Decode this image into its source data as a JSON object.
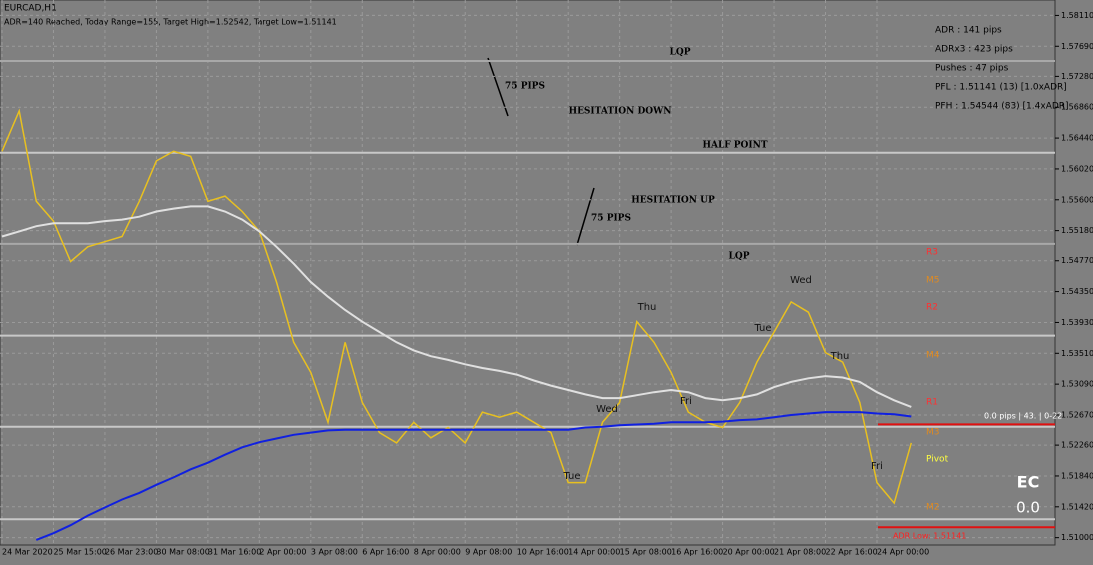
{
  "header": {
    "symbol": "EURCAD,H1",
    "status": "ADR=140 Reached, Today Range=155, Target High=1.52542, Target Low=1.51141"
  },
  "info_panel": [
    "ADR : 141 pips",
    "ADRx3 : 423 pips",
    "Pushes : 47 pips",
    "PFL : 1.51141 (13) [1.0xADR]",
    "PFH : 1.54544 (83) [1.4xADR]"
  ],
  "chart_data": {
    "type": "line",
    "categories": [
      "24 Mar 2020",
      null,
      null,
      "25 Mar 15:00",
      null,
      null,
      "26 Mar 23:00",
      null,
      null,
      "30 Mar 08:00",
      null,
      null,
      "31 Mar 16:00",
      null,
      null,
      "2 Apr 00:00",
      null,
      null,
      "3 Apr 08:00",
      null,
      null,
      "6 Apr 16:00",
      null,
      null,
      "8 Apr 00:00",
      null,
      null,
      "9 Apr 08:00",
      null,
      null,
      "10 Apr 16:00",
      null,
      null,
      "14 Apr 00:00",
      null,
      null,
      "15 Apr 08:00",
      null,
      null,
      "16 Apr 16:00",
      null,
      null,
      "20 Apr 00:00",
      null,
      null,
      "21 Apr 08:00",
      null,
      null,
      "22 Apr 16:00",
      null,
      null,
      "24 Apr 00:00",
      null,
      null
    ],
    "series": [
      {
        "name": "Price",
        "color": "#e8c020",
        "values": [
          1.5626,
          1.5681,
          1.5558,
          1.5531,
          1.5476,
          1.5496,
          1.5503,
          1.551,
          1.5558,
          1.5613,
          1.5626,
          1.5619,
          1.5558,
          1.5565,
          1.5544,
          1.5517,
          1.5448,
          1.5366,
          1.5325,
          1.5257,
          1.5366,
          1.5284,
          1.5243,
          1.5229,
          1.5257,
          1.5236,
          1.525,
          1.5229,
          1.5271,
          1.5264,
          1.5271,
          1.5257,
          1.5243,
          1.5175,
          1.5175,
          1.5257,
          1.5284,
          1.5394,
          1.5366,
          1.5325,
          1.5271,
          1.5257,
          1.525,
          1.5284,
          1.5339,
          1.538,
          1.5421,
          1.5407,
          1.5352,
          1.5339,
          1.5284,
          1.5175,
          1.5147,
          1.5229
        ]
      },
      {
        "name": "Slow MA",
        "color": "#e0e0e0",
        "values": [
          1.551,
          1.5517,
          1.5524,
          1.5528,
          1.5528,
          1.5528,
          1.5531,
          1.5533,
          1.5537,
          1.5544,
          1.5548,
          1.5551,
          1.5551,
          1.5544,
          1.5533,
          1.5517,
          1.5496,
          1.5473,
          1.5448,
          1.5428,
          1.541,
          1.5394,
          1.538,
          1.5366,
          1.5355,
          1.5347,
          1.5342,
          1.5336,
          1.5331,
          1.5327,
          1.5322,
          1.5314,
          1.5307,
          1.5301,
          1.5295,
          1.529,
          1.529,
          1.5294,
          1.5298,
          1.5301,
          1.5298,
          1.529,
          1.5287,
          1.529,
          1.5295,
          1.5305,
          1.5312,
          1.5317,
          1.532,
          1.5318,
          1.5312,
          1.5298,
          1.5287,
          1.5278
        ]
      },
      {
        "name": "Long MA",
        "color": "#1020e0",
        "values": [
          null,
          null,
          1.5097,
          1.5106,
          1.5117,
          1.513,
          1.5141,
          1.5152,
          1.5161,
          1.5172,
          1.5182,
          1.5193,
          1.5202,
          1.5213,
          1.5223,
          1.523,
          1.5235,
          1.524,
          1.5243,
          1.5246,
          1.5247,
          1.5247,
          1.5247,
          1.5247,
          1.5247,
          1.5247,
          1.5247,
          1.5247,
          1.5247,
          1.5247,
          1.5247,
          1.5247,
          1.5247,
          1.5247,
          1.525,
          1.5251,
          1.5253,
          1.5254,
          1.5255,
          1.5257,
          1.5257,
          1.5257,
          1.5258,
          1.526,
          1.5261,
          1.5264,
          1.5267,
          1.5269,
          1.5271,
          1.5271,
          1.5271,
          1.5269,
          1.5268,
          1.5265
        ]
      }
    ],
    "ylim": [
      1.509,
      1.5832
    ],
    "yticks": [
      {
        "value": 1.5811,
        "label": "1.58110"
      },
      {
        "value": 1.5769,
        "label": "1.57690"
      },
      {
        "value": 1.5728,
        "label": "1.57280"
      },
      {
        "value": 1.5686,
        "label": "1.56860"
      },
      {
        "value": 1.5644,
        "label": "1.56440"
      },
      {
        "value": 1.5602,
        "label": "1.56020"
      },
      {
        "value": 1.556,
        "label": "1.55600"
      },
      {
        "value": 1.5518,
        "label": "1.55180"
      },
      {
        "value": 1.5477,
        "label": "1.54770"
      },
      {
        "value": 1.5435,
        "label": "1.54350"
      },
      {
        "value": 1.5393,
        "label": "1.53930"
      },
      {
        "value": 1.5351,
        "label": "1.53510"
      },
      {
        "value": 1.5309,
        "label": "1.53090"
      },
      {
        "value": 1.5267,
        "label": "1.52670"
      },
      {
        "value": 1.5226,
        "label": "1.52260"
      },
      {
        "value": 1.5184,
        "label": "1.51840"
      },
      {
        "value": 1.5142,
        "label": "1.51420"
      },
      {
        "value": 1.51,
        "label": "1.51000"
      }
    ],
    "grid": true,
    "levels": [
      {
        "value": 1.5749,
        "color": "#a8a8a8"
      },
      {
        "value": 1.5624,
        "color": "#c8c8c8"
      },
      {
        "value": 1.55,
        "color": "#a8a8a8"
      },
      {
        "value": 1.5375,
        "color": "#c8c8c8"
      },
      {
        "value": 1.5251,
        "color": "#c8c8c8"
      },
      {
        "value": 1.5125,
        "color": "#c8c8c8"
      },
      {
        "value": 1.52542,
        "color": "#e01010"
      },
      {
        "value": 1.51141,
        "color": "#e01010"
      }
    ],
    "annotations": [
      "LQP",
      "75 PIPS",
      "HESITATION DOWN",
      "HALF POINT",
      "HESITATION UP",
      "75 PIPS",
      "LQP"
    ],
    "day_labels": [
      "Wed",
      "Thu",
      "Tue",
      "Thu",
      "Wed",
      "Fri",
      "Tue",
      "Fri"
    ],
    "pivot_labels": [
      "R3",
      "M5",
      "R2",
      "M4",
      "R1",
      "M3",
      "Pivot",
      "M2"
    ],
    "readout": "0.0 pips | 43. | 0-22",
    "badge": "EC",
    "badge_value": "0.0",
    "adr_low": "ADR Low: 1.51141"
  }
}
